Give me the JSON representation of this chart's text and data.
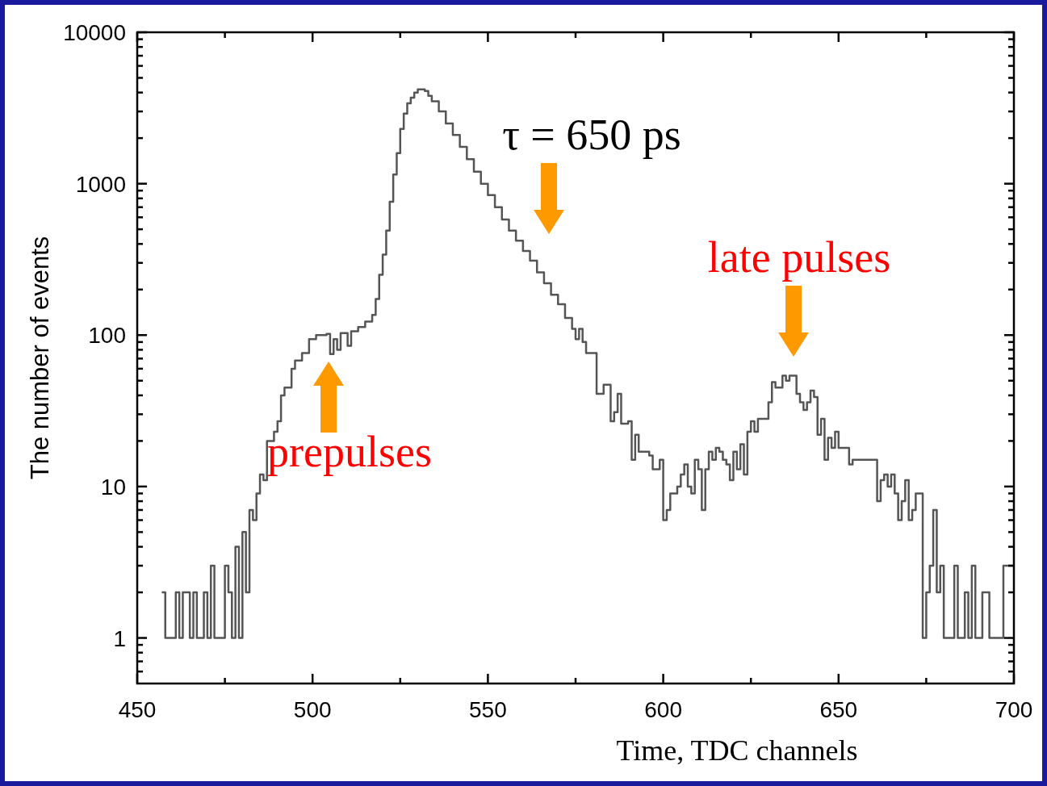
{
  "chart_data": {
    "type": "histogram",
    "xlabel": "Time, TDC channels",
    "ylabel": "The number of events",
    "color": "#555555",
    "log": true,
    "xlim": [
      450,
      700
    ],
    "ylim": [
      0.5,
      10000
    ],
    "xticks": [
      450,
      {
        "value": 475,
        "label": null
      },
      500,
      {
        "value": 525,
        "label": null
      },
      550,
      {
        "value": 575,
        "label": null
      },
      600,
      {
        "value": 625,
        "label": null
      },
      650,
      {
        "value": 675,
        "label": null
      },
      700
    ],
    "yticks": [
      {
        "value": 0.6,
        "label": null
      },
      {
        "value": 0.7,
        "label": null
      },
      {
        "value": 0.8,
        "label": null
      },
      {
        "value": 0.9,
        "label": null
      },
      1,
      {
        "value": 2,
        "label": null
      },
      {
        "value": 3,
        "label": null
      },
      {
        "value": 4,
        "label": null
      },
      {
        "value": 5,
        "label": null
      },
      {
        "value": 6,
        "label": null
      },
      {
        "value": 7,
        "label": null
      },
      {
        "value": 8,
        "label": null
      },
      {
        "value": 9,
        "label": null
      },
      10,
      {
        "value": 20,
        "label": null
      },
      {
        "value": 30,
        "label": null
      },
      {
        "value": 40,
        "label": null
      },
      {
        "value": 50,
        "label": null
      },
      {
        "value": 60,
        "label": null
      },
      {
        "value": 70,
        "label": null
      },
      {
        "value": 80,
        "label": null
      },
      {
        "value": 90,
        "label": null
      },
      100,
      {
        "value": 200,
        "label": null
      },
      {
        "value": 300,
        "label": null
      },
      {
        "value": 400,
        "label": null
      },
      {
        "value": 500,
        "label": null
      },
      {
        "value": 600,
        "label": null
      },
      {
        "value": 700,
        "label": null
      },
      {
        "value": 800,
        "label": null
      },
      {
        "value": 900,
        "label": null
      },
      1000,
      {
        "value": 2000,
        "label": null
      },
      {
        "value": 3000,
        "label": null
      },
      {
        "value": 4000,
        "label": null
      },
      {
        "value": 5000,
        "label": null
      },
      {
        "value": 6000,
        "label": null
      },
      {
        "value": 7000,
        "label": null
      },
      {
        "value": 8000,
        "label": null
      },
      {
        "value": 9000,
        "label": null
      },
      10000
    ],
    "bins": [
      457,
      458,
      461,
      462,
      463,
      465,
      466,
      467,
      468,
      469,
      470,
      471,
      472,
      474,
      475,
      476,
      477,
      478,
      479,
      480,
      481,
      482,
      483,
      484,
      485,
      486,
      487,
      489,
      490,
      491,
      492,
      494,
      495,
      497,
      499,
      501,
      504,
      505,
      506,
      507,
      508,
      510,
      511,
      513,
      515,
      517,
      518,
      519,
      520,
      521,
      522,
      523,
      524,
      525,
      526,
      527,
      528,
      529,
      530,
      532,
      533,
      534,
      536,
      538,
      540,
      542,
      544,
      546,
      548,
      550,
      552,
      554,
      556,
      558,
      560,
      562,
      564,
      566,
      568,
      570,
      572,
      574,
      575,
      576,
      577,
      578,
      581,
      583,
      585,
      586,
      587,
      588,
      590,
      591,
      592,
      593,
      596,
      597,
      599,
      600,
      601,
      602,
      604,
      605,
      606,
      607,
      608,
      609,
      610,
      611,
      612,
      613,
      614,
      615,
      616,
      617,
      618,
      619,
      620,
      621,
      622,
      623,
      624,
      625,
      626,
      627,
      630,
      631,
      632,
      634,
      635,
      636,
      638,
      639,
      640,
      641,
      642,
      643,
      644,
      645,
      646,
      647,
      648,
      649,
      650,
      653,
      654,
      655,
      661,
      662,
      663,
      664,
      665,
      666,
      667,
      668,
      669,
      670,
      671,
      672,
      674,
      675,
      676,
      677,
      678,
      679,
      680,
      683,
      684,
      685,
      686,
      687,
      688,
      689,
      691,
      693,
      695,
      697,
      700
    ],
    "values": [
      2,
      1,
      2,
      1,
      2,
      1,
      2,
      1,
      1,
      2,
      1,
      3,
      1,
      1,
      3,
      2,
      1,
      4,
      1,
      5,
      2,
      7,
      6,
      9,
      12,
      11,
      20,
      23,
      27,
      40,
      45,
      60,
      68,
      76,
      94,
      100,
      102,
      75,
      94,
      80,
      103,
      85,
      106,
      113,
      123,
      136,
      173,
      250,
      340,
      490,
      760,
      1150,
      1590,
      2300,
      2900,
      3400,
      3700,
      4000,
      4200,
      4100,
      3800,
      3500,
      3000,
      2500,
      2100,
      1750,
      1450,
      1200,
      1000,
      840,
      700,
      580,
      490,
      420,
      360,
      310,
      260,
      220,
      185,
      160,
      130,
      110,
      94,
      110,
      90,
      76,
      41,
      47,
      27,
      31,
      41,
      26,
      27,
      15,
      22,
      17,
      16,
      13,
      15,
      6,
      7,
      9,
      10,
      12,
      14,
      10,
      9,
      15,
      13,
      7,
      13,
      17,
      15,
      18,
      17,
      15,
      14,
      11,
      17,
      13,
      19,
      12,
      23,
      27,
      23,
      28,
      36,
      49,
      45,
      54,
      50,
      54,
      41,
      36,
      32,
      36,
      43,
      39,
      22,
      28,
      15,
      21,
      18,
      23,
      18,
      14,
      15,
      15,
      8,
      11,
      12,
      10,
      12,
      9,
      6,
      8,
      11,
      6,
      7,
      9,
      1,
      2,
      3,
      7,
      2,
      3,
      1,
      3,
      1,
      1,
      2,
      1,
      3,
      1,
      2,
      1,
      1,
      3
    ],
    "annotations": [
      "τ = 650 ps",
      "late pulses",
      "prepulses"
    ]
  }
}
